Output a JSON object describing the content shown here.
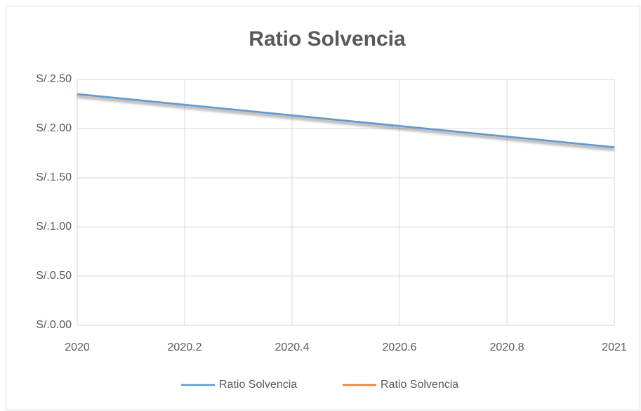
{
  "chart_data": {
    "type": "line",
    "title": "Ratio Solvencia",
    "x": [
      2020,
      2021
    ],
    "series": [
      {
        "name": "Ratio Solvencia",
        "color": "#5b9bd5",
        "values": [
          2.35,
          1.81
        ]
      },
      {
        "name": "Ratio Solvencia",
        "color": "#ed7d31",
        "values": [
          2.35,
          1.81
        ]
      }
    ],
    "xlim": [
      2020,
      2021
    ],
    "xticks": [
      2020,
      2020.2,
      2020.4,
      2020.6,
      2020.8,
      2021
    ],
    "ylim": [
      0,
      2.5
    ],
    "yticks": [
      {
        "value": 0,
        "label": "S/.0.00"
      },
      {
        "value": 0.5,
        "label": "S/.0.50"
      },
      {
        "value": 1,
        "label": "S/.1.00"
      },
      {
        "value": 1.5,
        "label": "S/.1.50"
      },
      {
        "value": 2,
        "label": "S/.2.00"
      },
      {
        "value": 2.5,
        "label": "S/.2.50"
      }
    ],
    "grid": true,
    "legend": "bottom"
  }
}
